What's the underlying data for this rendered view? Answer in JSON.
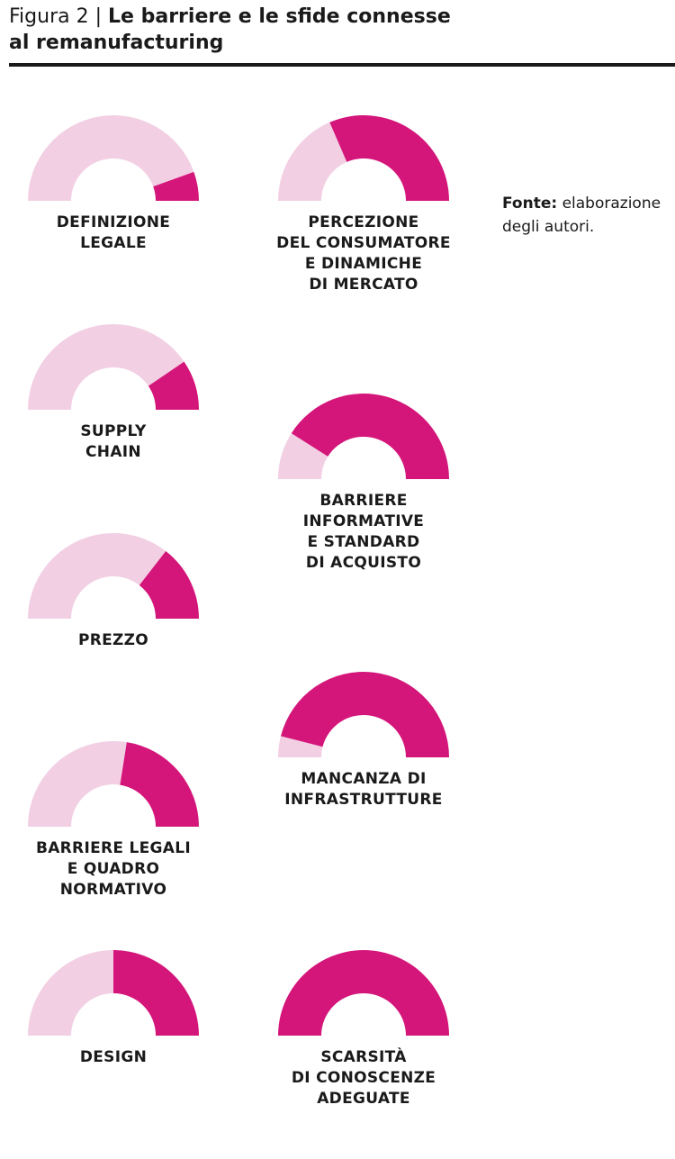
{
  "header": {
    "figure_number": "Figura 2",
    "separator": "|",
    "title_line1": "Le barriere e le sfide connesse",
    "title_line2": "al remanufacturing"
  },
  "source": {
    "label": "Fonte:",
    "text_line1": "elaborazione",
    "text_line2": "degli autori."
  },
  "colors": {
    "filled": "#d4157a",
    "empty": "#f2cfe3"
  },
  "chart_data": {
    "type": "pie",
    "subtype": "semicircle-gauge",
    "items": [
      {
        "label": "DEFINIZIONE\nLEGALE",
        "value": 0.11
      },
      {
        "label": "PERCEZIONE\nDEL CONSUMATORE\nE DINAMICHE\nDI MERCATO",
        "value": 0.63
      },
      {
        "label": "SUPPLY\nCHAIN",
        "value": 0.19
      },
      {
        "label": "BARRIERE\nINFORMATIVE\nE STANDARD\nDI ACQUISTO",
        "value": 0.82
      },
      {
        "label": "PREZZO",
        "value": 0.29
      },
      {
        "label": "MANCANZA DI\nINFRASTRUTTURE",
        "value": 0.92
      },
      {
        "label": "BARRIERE LEGALI\nE QUADRO\nNORMATIVO",
        "value": 0.45
      },
      {
        "label": "DESIGN",
        "value": 0.5
      },
      {
        "label": "SCARSITÀ\nDI CONOSCENZE\nADEGUATE",
        "value": 1.0
      }
    ]
  }
}
